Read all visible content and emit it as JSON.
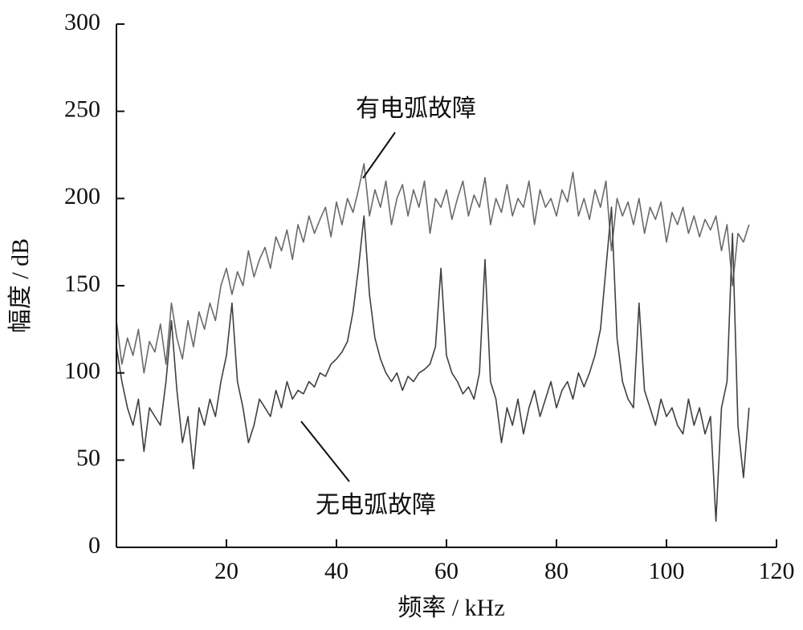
{
  "chart_data": {
    "type": "line",
    "xlabel": "频率 / kHz",
    "ylabel": "幅度 / dB",
    "annotations": [
      "有电弧故障",
      "无电弧故障"
    ],
    "xlim": [
      0,
      120
    ],
    "xticks": [
      20,
      40,
      60,
      80,
      100,
      120
    ],
    "ylim": [
      0,
      300
    ],
    "yticks": [
      0,
      50,
      100,
      150,
      200,
      250,
      300
    ],
    "x": [
      0,
      1,
      2,
      3,
      4,
      5,
      6,
      7,
      8,
      9,
      10,
      11,
      12,
      13,
      14,
      15,
      16,
      17,
      18,
      19,
      20,
      21,
      22,
      23,
      24,
      25,
      26,
      27,
      28,
      29,
      30,
      31,
      32,
      33,
      34,
      35,
      36,
      37,
      38,
      39,
      40,
      41,
      42,
      43,
      44,
      45,
      46,
      47,
      48,
      49,
      50,
      51,
      52,
      53,
      54,
      55,
      56,
      57,
      58,
      59,
      60,
      61,
      62,
      63,
      64,
      65,
      66,
      67,
      68,
      69,
      70,
      71,
      72,
      73,
      74,
      75,
      76,
      77,
      78,
      79,
      80,
      81,
      82,
      83,
      84,
      85,
      86,
      87,
      88,
      89,
      90,
      91,
      92,
      93,
      94,
      95,
      96,
      97,
      98,
      99,
      100,
      101,
      102,
      103,
      104,
      105,
      106,
      107,
      108,
      109,
      110,
      111,
      112,
      113,
      114,
      115
    ],
    "series": [
      {
        "color": "#6a6a6a",
        "values": [
          130,
          105,
          120,
          110,
          125,
          100,
          118,
          112,
          128,
          105,
          140,
          120,
          108,
          130,
          115,
          135,
          125,
          140,
          130,
          150,
          160,
          145,
          158,
          150,
          170,
          155,
          165,
          172,
          160,
          178,
          170,
          182,
          165,
          185,
          175,
          190,
          180,
          188,
          195,
          178,
          198,
          185,
          200,
          192,
          205,
          220,
          190,
          205,
          195,
          210,
          185,
          200,
          208,
          190,
          205,
          195,
          210,
          180,
          200,
          195,
          205,
          188,
          200,
          210,
          190,
          202,
          195,
          212,
          185,
          200,
          192,
          208,
          190,
          200,
          195,
          210,
          185,
          205,
          195,
          200,
          190,
          205,
          198,
          215,
          190,
          200,
          188,
          205,
          195,
          210,
          170,
          200,
          190,
          198,
          185,
          200,
          180,
          195,
          188,
          198,
          175,
          192,
          185,
          195,
          180,
          190,
          178,
          188,
          182,
          190,
          170,
          185,
          150,
          180,
          175,
          185
        ]
      },
      {
        "color": "#404040",
        "values": [
          115,
          95,
          80,
          70,
          85,
          55,
          80,
          75,
          70,
          95,
          130,
          90,
          60,
          75,
          45,
          80,
          70,
          85,
          75,
          95,
          110,
          140,
          95,
          80,
          60,
          70,
          85,
          80,
          75,
          90,
          80,
          95,
          85,
          90,
          88,
          95,
          92,
          100,
          98,
          105,
          108,
          112,
          118,
          135,
          160,
          190,
          145,
          120,
          108,
          100,
          95,
          100,
          90,
          98,
          95,
          100,
          102,
          105,
          115,
          160,
          110,
          100,
          95,
          88,
          92,
          85,
          100,
          165,
          95,
          85,
          60,
          80,
          70,
          85,
          65,
          80,
          90,
          75,
          85,
          95,
          80,
          90,
          95,
          85,
          100,
          92,
          100,
          110,
          125,
          160,
          195,
          120,
          95,
          85,
          80,
          140,
          90,
          80,
          70,
          85,
          75,
          80,
          70,
          65,
          85,
          70,
          80,
          65,
          75,
          15,
          80,
          95,
          180,
          70,
          40,
          80
        ]
      }
    ]
  }
}
